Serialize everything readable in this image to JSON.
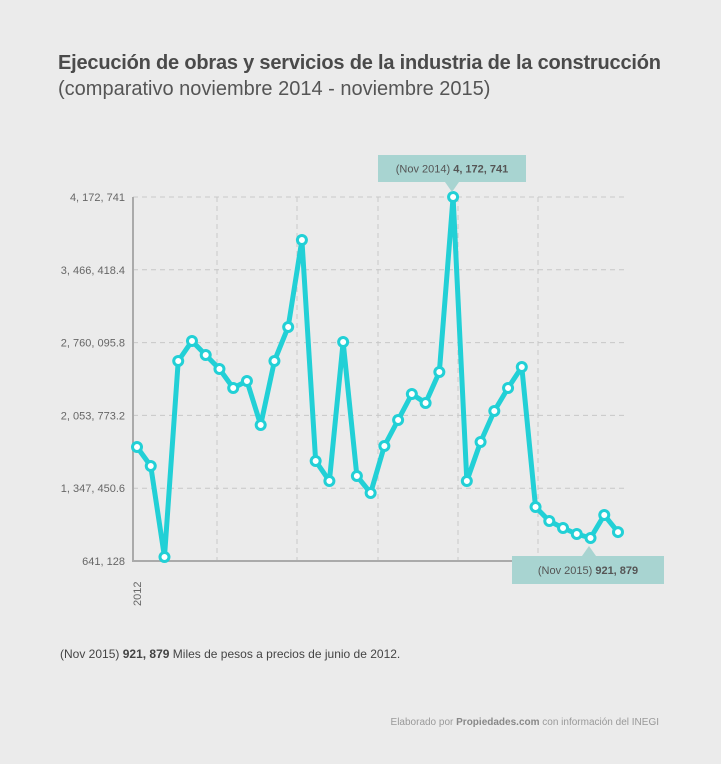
{
  "header": {
    "title": "Ejecución de obras y servicios de la industria de la construcción",
    "subtitle": "(comparativo noviembre 2014 - noviembre 2015)"
  },
  "chart_data": {
    "type": "line",
    "title": "Ejecución de obras y servicios de la industria de la construcción",
    "subtitle": "(comparativo noviembre 2014 - noviembre 2015)",
    "ylim": [
      641128,
      4172741
    ],
    "yticks": [
      "641, 128",
      "1, 347, 450.6",
      "2, 053, 773.2",
      "2, 760, 095.8",
      "3, 466, 418.4",
      "4, 172, 741"
    ],
    "ytick_values": [
      641128,
      1347450.6,
      2053773.2,
      2760095.8,
      3466418.4,
      4172741
    ],
    "xticks": [
      "2012"
    ],
    "grid": true,
    "color": "#22d0d6",
    "series": [
      {
        "values": [
          1747200,
          1562800,
          680000,
          2581600,
          2775600,
          2639800,
          2504000,
          2319600,
          2387500,
          1960600,
          2581600,
          2911500,
          3755600,
          1611300,
          1417300,
          2765900,
          1465800,
          1300900,
          1756900,
          2009100,
          2261400,
          2174100,
          2474900,
          4172741,
          1417300,
          1795700,
          2096500,
          2319600,
          2523400,
          1165000,
          1029200,
          961300,
          903100,
          864300,
          1087000,
          921879
        ]
      }
    ],
    "annotations": [
      {
        "label": "(Nov 2014)",
        "value": "4, 172, 741"
      },
      {
        "label": "(Nov 2015)",
        "value": "921, 879"
      }
    ]
  },
  "footer": {
    "note_label": "(Nov 2015)",
    "note_value": "921, 879",
    "note_text": "Miles de pesos a precios de junio de 2012.",
    "credit_pre": "Elaborado por",
    "credit_brand": "Propiedades.com",
    "credit_post": "con información del INEGI"
  }
}
